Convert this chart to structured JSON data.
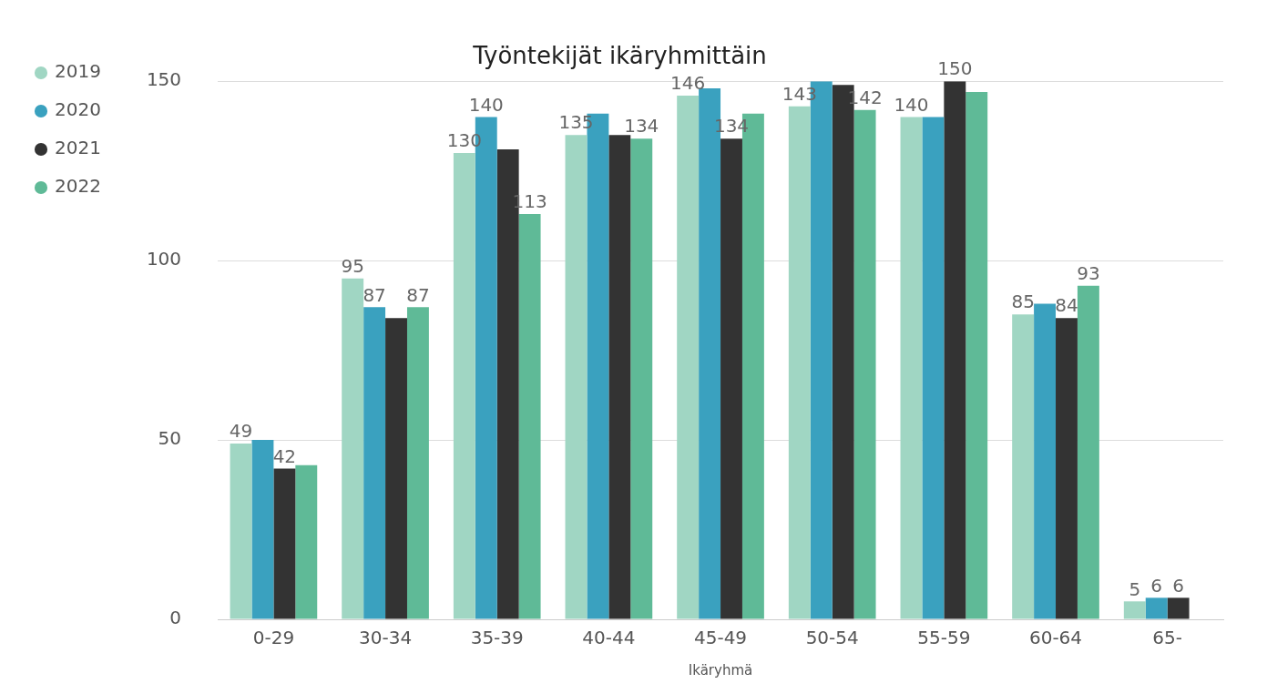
{
  "chart_data": {
    "type": "bar",
    "title": "Työntekijät ikäryhmittäin",
    "xlabel": "Ikäryhmä",
    "categories": [
      "0-29",
      "30-34",
      "35-39",
      "40-44",
      "45-49",
      "50-54",
      "55-59",
      "60-64",
      "65-"
    ],
    "series": [
      {
        "name": "2019",
        "color": "#a0d6c3",
        "values": [
          49,
          95,
          130,
          135,
          146,
          143,
          140,
          85,
          5
        ],
        "value_labels": [
          "49",
          "95",
          "130",
          "135",
          "146",
          "143",
          "140",
          "85",
          "5"
        ]
      },
      {
        "name": "2020",
        "color": "#3aa1bf",
        "values": [
          50,
          87,
          140,
          141,
          148,
          150,
          140,
          88,
          6
        ],
        "value_labels": [
          null,
          "87",
          "140",
          null,
          null,
          null,
          null,
          null,
          "6"
        ]
      },
      {
        "name": "2021",
        "color": "#333333",
        "values": [
          42,
          84,
          131,
          135,
          134,
          149,
          150,
          84,
          6
        ],
        "value_labels": [
          "42",
          null,
          null,
          null,
          "134",
          null,
          "150",
          "84",
          "6"
        ]
      },
      {
        "name": "2022",
        "color": "#5fba97",
        "values": [
          43,
          87,
          113,
          134,
          141,
          142,
          147,
          93,
          null
        ],
        "value_labels": [
          null,
          "87",
          "113",
          "134",
          null,
          "142",
          null,
          "93",
          null
        ]
      }
    ],
    "ylim": [
      0,
      150
    ],
    "yticks": [
      0,
      50,
      100,
      150
    ],
    "grid": "y",
    "legend": "top left"
  }
}
